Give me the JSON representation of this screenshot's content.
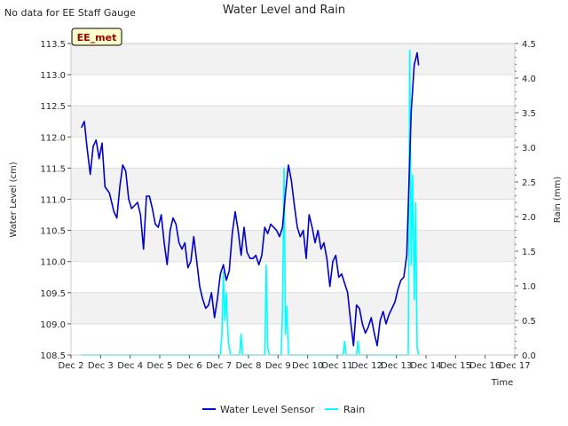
{
  "chart_data": {
    "type": "line",
    "title": "Water Level and Rain",
    "corner_note": "No data for EE Staff Gauge",
    "station_label": "EE_met",
    "xlabel": "Time",
    "ylabel_left": "Water Level (cm)",
    "ylabel_right": "Rain (mm)",
    "x_ticks": [
      "Dec 2",
      "Dec 3",
      "Dec 4",
      "Dec 5",
      "Dec 6",
      "Dec 7",
      "Dec 8",
      "Dec 9",
      "Dec 10",
      "Dec 11",
      "Dec 12",
      "Dec 13",
      "Dec 14",
      "Dec 15",
      "Dec 16",
      "Dec 17"
    ],
    "xlim": [
      2,
      17
    ],
    "ylim_left": [
      108.5,
      113.5
    ],
    "ylim_right": [
      0,
      4.5
    ],
    "y_ticks_left": [
      "108.5",
      "109.0",
      "109.5",
      "110.0",
      "110.5",
      "111.0",
      "111.5",
      "112.0",
      "112.5",
      "113.0",
      "113.5"
    ],
    "y_ticks_right": [
      "0.0",
      "0.5",
      "1.0",
      "1.5",
      "2.0",
      "2.5",
      "3.0",
      "3.5",
      "4.0",
      "4.5"
    ],
    "legend_position": "bottom-center",
    "series": [
      {
        "name": "Water Level Sensor",
        "axis": "left",
        "color": "#0000cc",
        "points": [
          [
            2.35,
            112.15
          ],
          [
            2.45,
            112.25
          ],
          [
            2.55,
            111.8
          ],
          [
            2.65,
            111.4
          ],
          [
            2.75,
            111.85
          ],
          [
            2.85,
            111.95
          ],
          [
            2.95,
            111.65
          ],
          [
            3.05,
            111.9
          ],
          [
            3.15,
            111.2
          ],
          [
            3.3,
            111.1
          ],
          [
            3.45,
            110.8
          ],
          [
            3.55,
            110.7
          ],
          [
            3.65,
            111.2
          ],
          [
            3.75,
            111.55
          ],
          [
            3.85,
            111.45
          ],
          [
            3.95,
            111.0
          ],
          [
            4.05,
            110.85
          ],
          [
            4.15,
            110.9
          ],
          [
            4.25,
            110.95
          ],
          [
            4.35,
            110.75
          ],
          [
            4.45,
            110.2
          ],
          [
            4.55,
            111.05
          ],
          [
            4.65,
            111.05
          ],
          [
            4.75,
            110.85
          ],
          [
            4.85,
            110.6
          ],
          [
            4.95,
            110.55
          ],
          [
            5.05,
            110.75
          ],
          [
            5.15,
            110.3
          ],
          [
            5.25,
            109.95
          ],
          [
            5.35,
            110.5
          ],
          [
            5.45,
            110.7
          ],
          [
            5.55,
            110.6
          ],
          [
            5.65,
            110.3
          ],
          [
            5.75,
            110.2
          ],
          [
            5.85,
            110.3
          ],
          [
            5.95,
            109.9
          ],
          [
            6.05,
            110.0
          ],
          [
            6.15,
            110.4
          ],
          [
            6.25,
            110.0
          ],
          [
            6.35,
            109.6
          ],
          [
            6.45,
            109.4
          ],
          [
            6.55,
            109.25
          ],
          [
            6.65,
            109.3
          ],
          [
            6.75,
            109.5
          ],
          [
            6.85,
            109.1
          ],
          [
            6.95,
            109.4
          ],
          [
            7.05,
            109.8
          ],
          [
            7.15,
            109.95
          ],
          [
            7.25,
            109.7
          ],
          [
            7.35,
            109.85
          ],
          [
            7.45,
            110.45
          ],
          [
            7.55,
            110.8
          ],
          [
            7.65,
            110.5
          ],
          [
            7.75,
            110.1
          ],
          [
            7.85,
            110.55
          ],
          [
            7.95,
            110.15
          ],
          [
            8.05,
            110.05
          ],
          [
            8.15,
            110.05
          ],
          [
            8.25,
            110.1
          ],
          [
            8.35,
            109.95
          ],
          [
            8.45,
            110.1
          ],
          [
            8.55,
            110.55
          ],
          [
            8.65,
            110.45
          ],
          [
            8.75,
            110.6
          ],
          [
            8.85,
            110.55
          ],
          [
            8.95,
            110.5
          ],
          [
            9.05,
            110.4
          ],
          [
            9.15,
            110.55
          ],
          [
            9.25,
            111.1
          ],
          [
            9.35,
            111.55
          ],
          [
            9.45,
            111.3
          ],
          [
            9.55,
            110.9
          ],
          [
            9.65,
            110.55
          ],
          [
            9.75,
            110.4
          ],
          [
            9.85,
            110.5
          ],
          [
            9.95,
            110.05
          ],
          [
            10.05,
            110.75
          ],
          [
            10.15,
            110.55
          ],
          [
            10.25,
            110.3
          ],
          [
            10.35,
            110.5
          ],
          [
            10.45,
            110.2
          ],
          [
            10.55,
            110.3
          ],
          [
            10.65,
            110.05
          ],
          [
            10.75,
            109.6
          ],
          [
            10.85,
            110.0
          ],
          [
            10.95,
            110.1
          ],
          [
            11.05,
            109.75
          ],
          [
            11.15,
            109.8
          ],
          [
            11.25,
            109.65
          ],
          [
            11.35,
            109.5
          ],
          [
            11.45,
            109.05
          ],
          [
            11.55,
            108.65
          ],
          [
            11.65,
            109.3
          ],
          [
            11.75,
            109.25
          ],
          [
            11.85,
            109.0
          ],
          [
            11.95,
            108.85
          ],
          [
            12.05,
            108.95
          ],
          [
            12.15,
            109.1
          ],
          [
            12.25,
            108.85
          ],
          [
            12.35,
            108.65
          ],
          [
            12.45,
            109.05
          ],
          [
            12.55,
            109.2
          ],
          [
            12.65,
            109.0
          ],
          [
            12.75,
            109.15
          ],
          [
            12.85,
            109.25
          ],
          [
            12.95,
            109.35
          ],
          [
            13.05,
            109.55
          ],
          [
            13.15,
            109.7
          ],
          [
            13.25,
            109.75
          ],
          [
            13.35,
            110.1
          ],
          [
            13.42,
            111.2
          ],
          [
            13.5,
            112.4
          ],
          [
            13.6,
            113.15
          ],
          [
            13.7,
            113.35
          ],
          [
            13.75,
            113.15
          ]
        ]
      },
      {
        "name": "Rain",
        "axis": "right",
        "color": "#00ffff",
        "points": [
          [
            2.35,
            0.0
          ],
          [
            7.05,
            0.0
          ],
          [
            7.1,
            0.3
          ],
          [
            7.15,
            1.2
          ],
          [
            7.2,
            0.5
          ],
          [
            7.25,
            0.9
          ],
          [
            7.3,
            0.3
          ],
          [
            7.35,
            0.1
          ],
          [
            7.4,
            0.0
          ],
          [
            7.7,
            0.0
          ],
          [
            7.75,
            0.3
          ],
          [
            7.8,
            0.0
          ],
          [
            8.55,
            0.0
          ],
          [
            8.6,
            1.3
          ],
          [
            8.65,
            0.1
          ],
          [
            8.7,
            0.0
          ],
          [
            9.1,
            0.0
          ],
          [
            9.15,
            0.6
          ],
          [
            9.2,
            2.7
          ],
          [
            9.25,
            0.3
          ],
          [
            9.3,
            0.7
          ],
          [
            9.35,
            0.0
          ],
          [
            11.2,
            0.0
          ],
          [
            11.25,
            0.2
          ],
          [
            11.3,
            0.0
          ],
          [
            11.65,
            0.0
          ],
          [
            11.7,
            0.2
          ],
          [
            11.75,
            0.0
          ],
          [
            13.4,
            0.0
          ],
          [
            13.45,
            4.4
          ],
          [
            13.5,
            1.3
          ],
          [
            13.55,
            2.6
          ],
          [
            13.6,
            0.8
          ],
          [
            13.65,
            2.2
          ],
          [
            13.7,
            0.1
          ],
          [
            13.75,
            0.0
          ]
        ]
      }
    ]
  }
}
